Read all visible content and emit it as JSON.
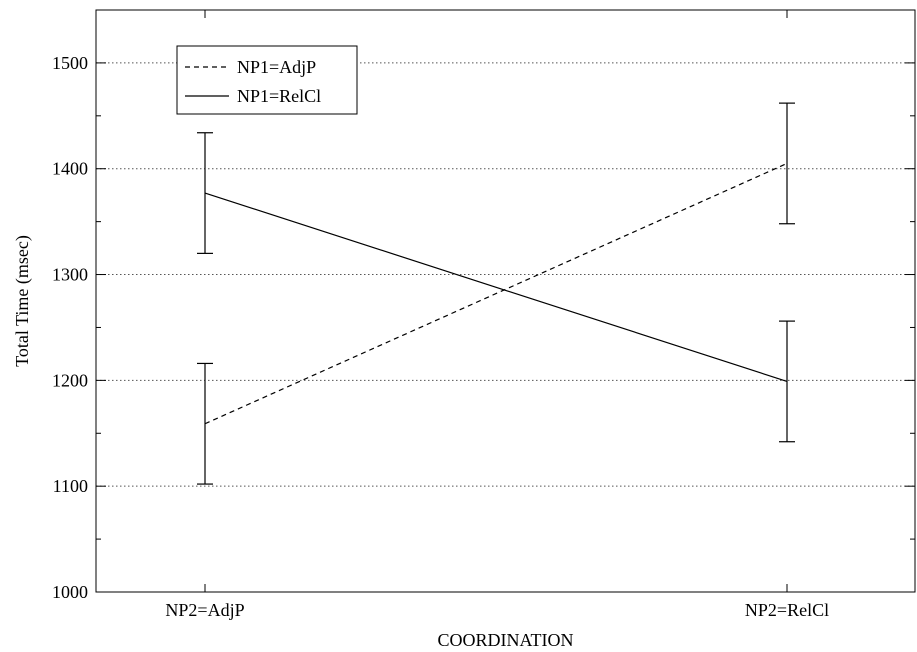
{
  "chart_data": {
    "type": "line",
    "title": "",
    "xlabel": "COORDINATION",
    "ylabel": "Total Time (msec)",
    "categories": [
      "NP2=AdjP",
      "NP2=RelCl"
    ],
    "ylim": [
      1000,
      1550
    ],
    "yticks": [
      1000,
      1100,
      1200,
      1300,
      1400,
      1500
    ],
    "grid": "horizontal dotted",
    "legend_position": "top-left",
    "series": [
      {
        "name": "NP1=AdjP",
        "dash": "dashed",
        "values": [
          1159,
          1405
        ],
        "errors": [
          57,
          57
        ]
      },
      {
        "name": "NP1=RelCl",
        "dash": "solid",
        "values": [
          1377,
          1199
        ],
        "errors": [
          57,
          57
        ]
      }
    ]
  }
}
